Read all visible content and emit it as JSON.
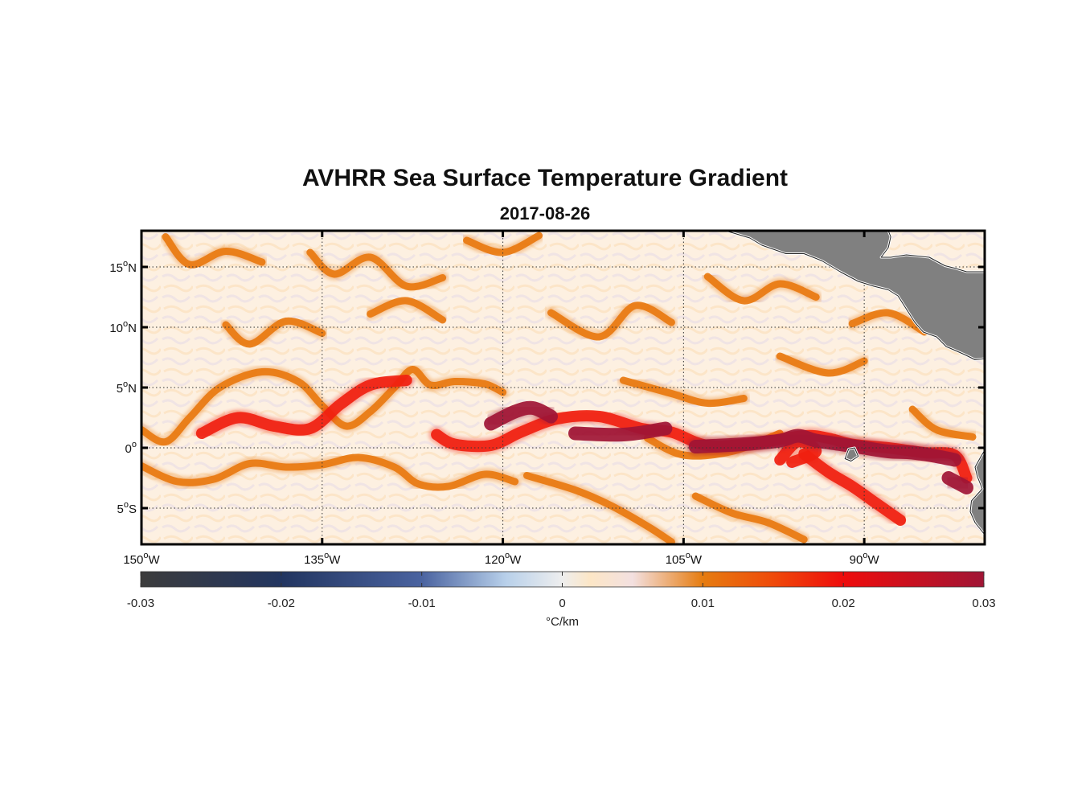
{
  "title": "AVHRR Sea Surface Temperature Gradient",
  "subtitle": "2017-08-26",
  "map": {
    "lon_range": [
      -150,
      -80
    ],
    "lat_range": [
      -8,
      18
    ],
    "lon_ticks": [
      {
        "value": -150,
        "deg": "150",
        "hemi": "W"
      },
      {
        "value": -135,
        "deg": "135",
        "hemi": "W"
      },
      {
        "value": -120,
        "deg": "120",
        "hemi": "W"
      },
      {
        "value": -105,
        "deg": "105",
        "hemi": "W"
      },
      {
        "value": -90,
        "deg": "90",
        "hemi": "W"
      }
    ],
    "lat_ticks": [
      {
        "value": 15,
        "deg": "15",
        "hemi": "N"
      },
      {
        "value": 10,
        "deg": "10",
        "hemi": "N"
      },
      {
        "value": 5,
        "deg": "5",
        "hemi": "N"
      },
      {
        "value": 0,
        "deg": "0",
        "hemi": ""
      },
      {
        "value": -5,
        "deg": "5",
        "hemi": "S"
      }
    ],
    "gridlines": "dotted",
    "land_color": "#808080",
    "front_colors": {
      "weak": "#e8780f",
      "moderate": "#f02010",
      "strong": "#a01535"
    },
    "fronts": [
      {
        "level": "weak",
        "points": [
          [
            -150,
            1.5
          ],
          [
            -148,
            0.5
          ],
          [
            -146,
            2.5
          ],
          [
            -143.5,
            5
          ],
          [
            -140,
            6.3
          ],
          [
            -137,
            5.5
          ],
          [
            -135,
            3.5
          ],
          [
            -133,
            1.8
          ],
          [
            -131,
            3
          ],
          [
            -129,
            5
          ],
          [
            -127.5,
            6.5
          ],
          [
            -126,
            5.2
          ],
          [
            -124,
            5.5
          ],
          [
            -121.5,
            5.3
          ],
          [
            -120,
            4.6
          ]
        ]
      },
      {
        "level": "weak",
        "points": [
          [
            -150,
            -1.5
          ],
          [
            -147,
            -2.8
          ],
          [
            -144,
            -2.6
          ],
          [
            -141,
            -1.3
          ],
          [
            -138,
            -1.6
          ],
          [
            -135,
            -1.4
          ],
          [
            -132,
            -0.8
          ],
          [
            -129,
            -1.6
          ],
          [
            -127,
            -3
          ],
          [
            -124.5,
            -3.2
          ],
          [
            -121.5,
            -2.2
          ],
          [
            -119,
            -2.8
          ]
        ]
      },
      {
        "level": "weak",
        "points": [
          [
            -148,
            17.5
          ],
          [
            -146,
            15.2
          ],
          [
            -143,
            16.3
          ],
          [
            -140,
            15.4
          ]
        ]
      },
      {
        "level": "weak",
        "points": [
          [
            -136,
            16.2
          ],
          [
            -134,
            14.4
          ],
          [
            -131,
            15.8
          ],
          [
            -128,
            13.4
          ],
          [
            -125,
            14.1
          ]
        ]
      },
      {
        "level": "weak",
        "points": [
          [
            -123,
            17.2
          ],
          [
            -120,
            16.2
          ],
          [
            -117,
            17.6
          ]
        ]
      },
      {
        "level": "weak",
        "points": [
          [
            -143,
            10.2
          ],
          [
            -141,
            8.6
          ],
          [
            -138,
            10.5
          ],
          [
            -135,
            9.5
          ]
        ]
      },
      {
        "level": "weak",
        "points": [
          [
            -131,
            11.1
          ],
          [
            -128,
            12.2
          ],
          [
            -125,
            10.6
          ]
        ]
      },
      {
        "level": "weak",
        "points": [
          [
            -116,
            11.2
          ],
          [
            -112,
            9.2
          ],
          [
            -109,
            11.8
          ],
          [
            -106,
            10.4
          ]
        ]
      },
      {
        "level": "weak",
        "points": [
          [
            -103,
            14.2
          ],
          [
            -100,
            12.2
          ],
          [
            -97,
            13.6
          ],
          [
            -94,
            12.5
          ]
        ]
      },
      {
        "level": "weak",
        "points": [
          [
            -91,
            10.3
          ],
          [
            -88,
            11.2
          ],
          [
            -85,
            9.6
          ]
        ]
      },
      {
        "level": "weak",
        "points": [
          [
            -118,
            -2.3
          ],
          [
            -114,
            -3.5
          ],
          [
            -111,
            -4.8
          ],
          [
            -108,
            -6.5
          ],
          [
            -106,
            -7.8
          ]
        ]
      },
      {
        "level": "weak",
        "points": [
          [
            -108,
            0.8
          ],
          [
            -105,
            -0.6
          ],
          [
            -101,
            -0.3
          ],
          [
            -97,
            1.2
          ]
        ]
      },
      {
        "level": "weak",
        "points": [
          [
            -104,
            -4
          ],
          [
            -101,
            -5.4
          ],
          [
            -98,
            -6.2
          ],
          [
            -95,
            -7.6
          ]
        ]
      },
      {
        "level": "weak",
        "points": [
          [
            -110,
            5.6
          ],
          [
            -106,
            4.5
          ],
          [
            -103,
            3.7
          ],
          [
            -100,
            4.1
          ]
        ]
      },
      {
        "level": "weak",
        "points": [
          [
            -86,
            3.2
          ],
          [
            -84,
            1.5
          ],
          [
            -81,
            0.9
          ]
        ]
      },
      {
        "level": "weak",
        "points": [
          [
            -97,
            7.6
          ],
          [
            -93,
            6.2
          ],
          [
            -90,
            7.2
          ]
        ]
      },
      {
        "level": "moderate",
        "points": [
          [
            -145,
            1.2
          ],
          [
            -142,
            2.5
          ],
          [
            -139,
            1.8
          ],
          [
            -136,
            1.6
          ],
          [
            -133.5,
            3.6
          ],
          [
            -131,
            5.2
          ],
          [
            -128,
            5.6
          ]
        ]
      },
      {
        "level": "moderate",
        "points": [
          [
            -125.5,
            1.1
          ],
          [
            -124,
            0.3
          ],
          [
            -121,
            0.2
          ],
          [
            -118.5,
            1.3
          ],
          [
            -115.5,
            2.4
          ],
          [
            -112,
            2.6
          ],
          [
            -108.5,
            1.6
          ],
          [
            -106,
            1.3
          ],
          [
            -103,
            0.2
          ],
          [
            -99,
            0.4
          ],
          [
            -95,
            1
          ],
          [
            -93,
            0.8
          ],
          [
            -91,
            0.3
          ],
          [
            -88,
            0
          ],
          [
            -85,
            -0.4
          ],
          [
            -82.5,
            -0.6
          ],
          [
            -81.5,
            -2.5
          ]
        ]
      },
      {
        "level": "moderate",
        "points": [
          [
            -95,
            -0.5
          ],
          [
            -93,
            -2
          ],
          [
            -91,
            -3.2
          ],
          [
            -89,
            -4.6
          ],
          [
            -87,
            -6
          ]
        ]
      },
      {
        "level": "moderate",
        "points": [
          [
            -97,
            -1
          ],
          [
            -95.5,
            0.5
          ],
          [
            -94,
            -0.3
          ],
          [
            -96,
            -1.2
          ]
        ]
      },
      {
        "level": "strong",
        "points": [
          [
            -121,
            2
          ],
          [
            -119,
            3
          ],
          [
            -117.5,
            3.3
          ],
          [
            -116,
            2.6
          ]
        ]
      },
      {
        "level": "strong",
        "points": [
          [
            -114,
            1.2
          ],
          [
            -110,
            1.1
          ],
          [
            -106.5,
            1.6
          ]
        ]
      },
      {
        "level": "strong",
        "points": [
          [
            -104,
            0.1
          ],
          [
            -100,
            0.3
          ],
          [
            -97,
            0.6
          ],
          [
            -95.5,
            1
          ],
          [
            -94,
            0.6
          ],
          [
            -92,
            0.3
          ],
          [
            -90,
            0
          ],
          [
            -88,
            -0.3
          ],
          [
            -86,
            -0.4
          ],
          [
            -84,
            -0.7
          ],
          [
            -82.5,
            -1
          ]
        ]
      },
      {
        "level": "strong",
        "points": [
          [
            -83,
            -2.5
          ],
          [
            -81.5,
            -3.3
          ]
        ]
      }
    ],
    "land": [
      {
        "name": "central-america",
        "points": [
          [
            -101.5,
            18
          ],
          [
            -99.5,
            17.4
          ],
          [
            -98.5,
            16.8
          ],
          [
            -96.5,
            16.1
          ],
          [
            -95,
            16.1
          ],
          [
            -93.5,
            15.5
          ],
          [
            -92,
            14.6
          ],
          [
            -90.5,
            13.8
          ],
          [
            -89.2,
            13.4
          ],
          [
            -88,
            13.1
          ],
          [
            -87.2,
            12.6
          ],
          [
            -86.5,
            11.5
          ],
          [
            -85.8,
            10.4
          ],
          [
            -85.1,
            9.6
          ],
          [
            -84,
            9.2
          ],
          [
            -83.2,
            8.4
          ],
          [
            -82.5,
            8.1
          ],
          [
            -81.6,
            7.7
          ],
          [
            -80.8,
            7.3
          ],
          [
            -80,
            7.4
          ],
          [
            -80,
            14.6
          ],
          [
            -81.5,
            14.6
          ],
          [
            -82.5,
            14.9
          ],
          [
            -83.3,
            15.1
          ],
          [
            -84.6,
            15.8
          ],
          [
            -86.5,
            16
          ],
          [
            -87.8,
            15.8
          ],
          [
            -88.6,
            15.8
          ],
          [
            -88,
            16.6
          ],
          [
            -87.8,
            17.5
          ],
          [
            -88,
            18
          ]
        ]
      },
      {
        "name": "galapagos",
        "points": [
          [
            -91.6,
            -0.9
          ],
          [
            -91.3,
            -0.1
          ],
          [
            -90.8,
            0
          ],
          [
            -90.5,
            -0.7
          ],
          [
            -91.1,
            -1.1
          ]
        ]
      },
      {
        "name": "south-america",
        "points": [
          [
            -80,
            -0.2
          ],
          [
            -80.3,
            -0.7
          ],
          [
            -80.8,
            -1.6
          ],
          [
            -80.6,
            -2.4
          ],
          [
            -80.2,
            -3.4
          ],
          [
            -81.1,
            -4.4
          ],
          [
            -81.2,
            -5.3
          ],
          [
            -80.8,
            -6.2
          ],
          [
            -80,
            -7.2
          ],
          [
            -80,
            -8
          ],
          [
            -80,
            -0.2
          ]
        ]
      }
    ]
  },
  "colorbar": {
    "min": -0.03,
    "max": 0.03,
    "ticks": [
      "-0.03",
      "-0.02",
      "-0.01",
      "0",
      "0.01",
      "0.02",
      "0.03"
    ],
    "tick_values": [
      -0.03,
      -0.02,
      -0.01,
      0,
      0.01,
      0.02,
      0.03
    ],
    "unit": "°C/km",
    "stops": [
      {
        "value": -0.03,
        "color": "#3c3c3c"
      },
      {
        "value": -0.02,
        "color": "#223560"
      },
      {
        "value": -0.01,
        "color": "#4a63a0"
      },
      {
        "value": -0.004,
        "color": "#b8d0ea"
      },
      {
        "value": 0,
        "color": "#eeeeee"
      },
      {
        "value": 0.002,
        "color": "#fce6c6"
      },
      {
        "value": 0.005,
        "color": "#f3e0e0"
      },
      {
        "value": 0.01,
        "color": "#e67c10"
      },
      {
        "value": 0.015,
        "color": "#ef4a0a"
      },
      {
        "value": 0.02,
        "color": "#ee0c0c"
      },
      {
        "value": 0.03,
        "color": "#a01535"
      }
    ]
  }
}
